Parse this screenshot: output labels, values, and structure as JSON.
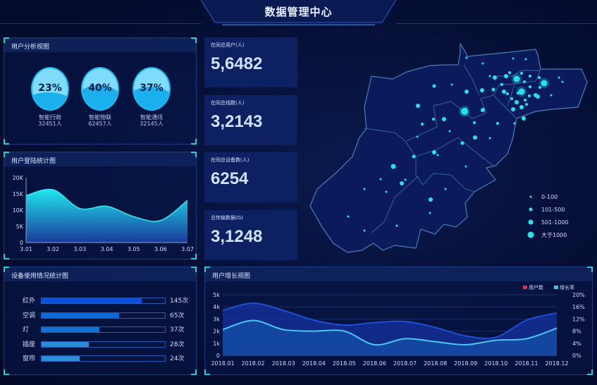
{
  "header": {
    "title": "数据管理中心"
  },
  "user_analysis": {
    "title": "用户分析视图",
    "items": [
      {
        "percent": "23%",
        "fill": 0.23,
        "name": "智能行政",
        "count": "32451人"
      },
      {
        "percent": "40%",
        "fill": 0.4,
        "name": "智能物联",
        "count": "62457人"
      },
      {
        "percent": "37%",
        "fill": 0.37,
        "name": "智能通讯",
        "count": "32145人"
      }
    ]
  },
  "stats": [
    {
      "label": "在同总用户(人)",
      "value": "5,6482"
    },
    {
      "label": "在同总线数(人)",
      "value": "3,2143"
    },
    {
      "label": "在同总设备数(人)",
      "value": "6254"
    },
    {
      "label": "总传输数据(G)",
      "value": "3,1248"
    }
  ],
  "device_usage": {
    "title": "设备使用情况统计图",
    "items": [
      {
        "name": "红外",
        "value": "145次",
        "fill": 0.81,
        "color": "#0b4fe0"
      },
      {
        "name": "空调",
        "value": "65次",
        "fill": 0.63,
        "color": "#0f66d6"
      },
      {
        "name": "灯",
        "value": "37次",
        "fill": 0.47,
        "color": "#1470cc"
      },
      {
        "name": "插座",
        "value": "28次",
        "fill": 0.38,
        "color": "#2a8ed6"
      },
      {
        "name": "窗帘",
        "value": "24次",
        "fill": 0.31,
        "color": "#2a8ed6"
      }
    ]
  },
  "map": {
    "legend": [
      {
        "label": "0-100"
      },
      {
        "label": "101-500"
      },
      {
        "label": "501-1000"
      },
      {
        "label": "大于1000"
      }
    ],
    "dot_color": "#22e4f0"
  },
  "chart_data": [
    {
      "type": "area",
      "title": "用户登陆统计图",
      "categories": [
        "3.01",
        "3.02",
        "3.03",
        "3.04",
        "3.05",
        "3.06",
        "3.07"
      ],
      "values": [
        14500,
        16300,
        10500,
        11200,
        8000,
        6800,
        13000
      ],
      "yticks": [
        "0",
        "5K",
        "10K",
        "15K",
        "20K"
      ],
      "ylim": [
        0,
        20000
      ],
      "grid": false
    },
    {
      "type": "area",
      "title": "用户增长视图",
      "categories": [
        "2018.01",
        "2018.02",
        "2018.03",
        "2018.04",
        "2018.05",
        "2018.06",
        "2018.07",
        "2018.08",
        "2018.09",
        "2018.10",
        "2018.11",
        "2018.12"
      ],
      "series": [
        {
          "name": "用户数",
          "axis": "left",
          "legend_color": "#e0304a",
          "line_color": "#1f4fd8",
          "values": [
            3700,
            4300,
            3700,
            2900,
            2500,
            2700,
            2800,
            2300,
            1600,
            1500,
            2900,
            3500
          ]
        },
        {
          "name": "增长率",
          "axis": "right",
          "legend_color": "#35c8f0",
          "line_color": "#4cc8f0",
          "values": [
            8.5,
            11.5,
            8.5,
            8,
            8,
            3.5,
            5.5,
            4.5,
            3.5,
            5,
            5.5,
            9
          ]
        }
      ],
      "yticks_left": [
        "0",
        "1k",
        "2k",
        "3k",
        "4k",
        "5k"
      ],
      "ylim_left": [
        0,
        5000
      ],
      "yticks_right": [
        "0%",
        "4%",
        "8%",
        "12%",
        "16%",
        "20%"
      ],
      "ylim_right": [
        0,
        20
      ],
      "legend": "top-right",
      "grid": true
    }
  ]
}
